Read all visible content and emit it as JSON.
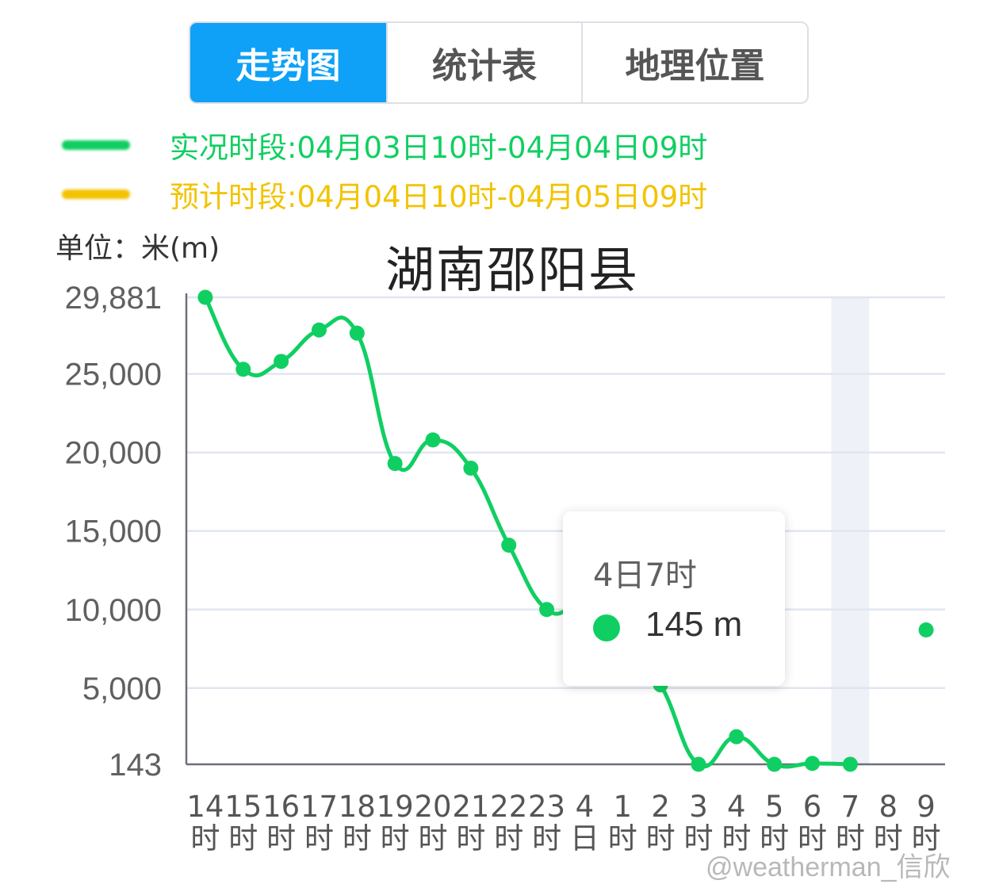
{
  "tabs": [
    {
      "label": "走势图",
      "active": true
    },
    {
      "label": "统计表",
      "active": false
    },
    {
      "label": "地理位置",
      "active": false
    }
  ],
  "legend": [
    {
      "text": "实况时段:04月03日10时-04月04日09时",
      "color": "#10cf62"
    },
    {
      "text": "预计时段:04月04日10时-04月05日09时",
      "color": "#f2c300"
    }
  ],
  "unit_label": "单位：米(m)",
  "watermark": "@weatherman_信欣",
  "tooltip": {
    "title": "4日7时",
    "value": "145 m"
  },
  "chart_data": {
    "type": "line",
    "title": "湖南邵阳县",
    "ylabel": "单位：米(m)",
    "ylim": [
      143,
      29881
    ],
    "yticks": [
      "29,881",
      "25,000",
      "20,000",
      "15,000",
      "10,000",
      "5,000",
      "143"
    ],
    "ytick_values": [
      29881,
      25000,
      20000,
      15000,
      10000,
      5000,
      143
    ],
    "categories": [
      {
        "num": "14",
        "unit": "时"
      },
      {
        "num": "15",
        "unit": "时"
      },
      {
        "num": "16",
        "unit": "时"
      },
      {
        "num": "17",
        "unit": "时"
      },
      {
        "num": "18",
        "unit": "时"
      },
      {
        "num": "19",
        "unit": "时"
      },
      {
        "num": "20",
        "unit": "时"
      },
      {
        "num": "21",
        "unit": "时"
      },
      {
        "num": "22",
        "unit": "时"
      },
      {
        "num": "23",
        "unit": "时"
      },
      {
        "num": "4",
        "unit": "日"
      },
      {
        "num": "1",
        "unit": "时"
      },
      {
        "num": "2",
        "unit": "时"
      },
      {
        "num": "3",
        "unit": "时"
      },
      {
        "num": "4",
        "unit": "时"
      },
      {
        "num": "5",
        "unit": "时"
      },
      {
        "num": "6",
        "unit": "时"
      },
      {
        "num": "7",
        "unit": "时"
      },
      {
        "num": "8",
        "unit": "时"
      },
      {
        "num": "9",
        "unit": "时"
      }
    ],
    "series": [
      {
        "color": "#10cf62",
        "values": [
          29881,
          25300,
          25800,
          27800,
          27600,
          19300,
          20800,
          19000,
          14100,
          10000,
          10200,
          8000,
          5200,
          143,
          1900,
          143,
          200,
          145,
          null,
          8700
        ]
      }
    ],
    "highlight_category_index": 17,
    "grid": true
  }
}
